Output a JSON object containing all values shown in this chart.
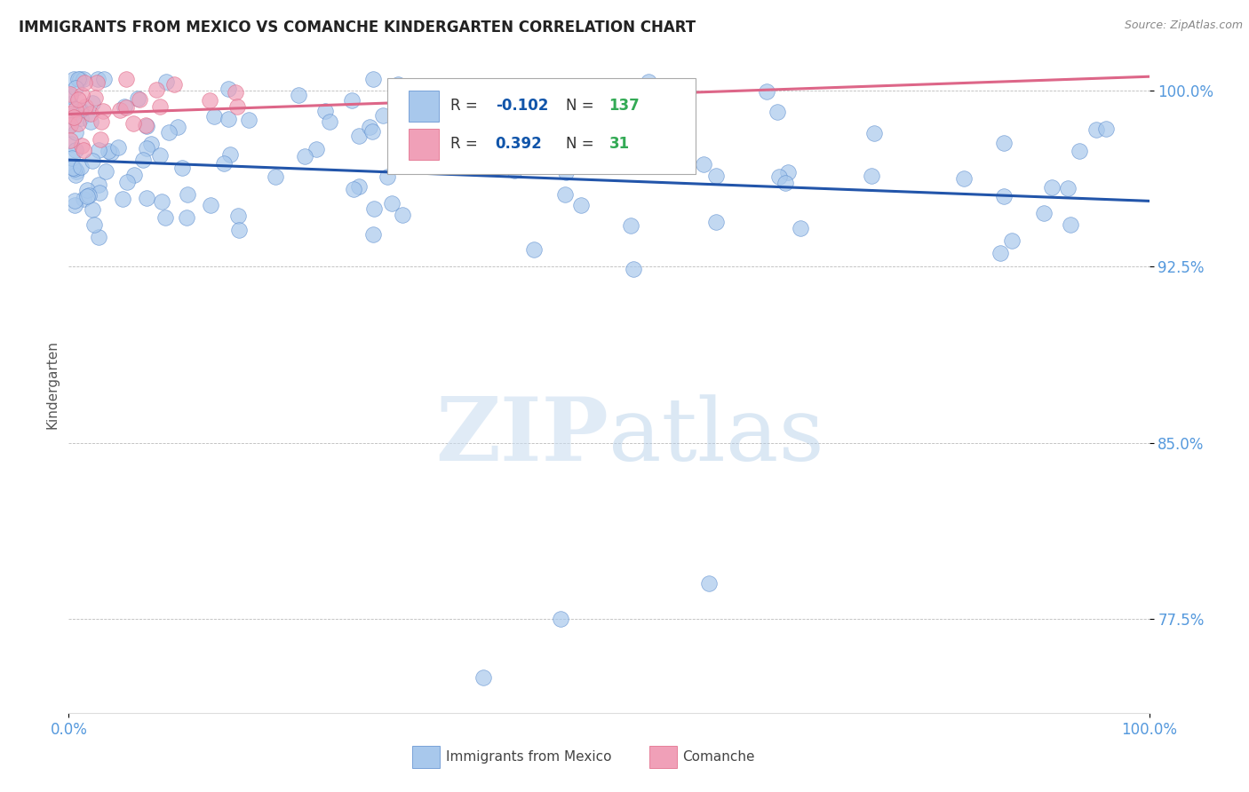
{
  "title": "IMMIGRANTS FROM MEXICO VS COMANCHE KINDERGARTEN CORRELATION CHART",
  "source_text": "Source: ZipAtlas.com",
  "ylabel": "Kindergarten",
  "x_tick_labels": [
    "0.0%",
    "100.0%"
  ],
  "y_ticks": [
    0.775,
    0.85,
    0.925,
    1.0
  ],
  "y_tick_labels": [
    "77.5%",
    "85.0%",
    "92.5%",
    "100.0%"
  ],
  "xlim": [
    0.0,
    1.0
  ],
  "ylim": [
    0.735,
    1.015
  ],
  "blue_R": -0.102,
  "blue_N": 137,
  "pink_R": 0.392,
  "pink_N": 31,
  "blue_color": "#A8C8EC",
  "pink_color": "#F0A0B8",
  "blue_edge_color": "#5588CC",
  "pink_edge_color": "#E06080",
  "blue_line_color": "#2255AA",
  "pink_line_color": "#DD6688",
  "grid_color": "#BBBBBB",
  "axis_color": "#5599DD",
  "watermark_color": "#D8E8F8",
  "blue_trend_start": 0.9705,
  "blue_trend_end": 0.953,
  "pink_trend_x0": 0.0,
  "pink_trend_y0": 0.99,
  "pink_trend_x1": 1.0,
  "pink_trend_y1": 1.006,
  "legend_R_color": "#1155AA",
  "legend_N_color": "#33AA55"
}
